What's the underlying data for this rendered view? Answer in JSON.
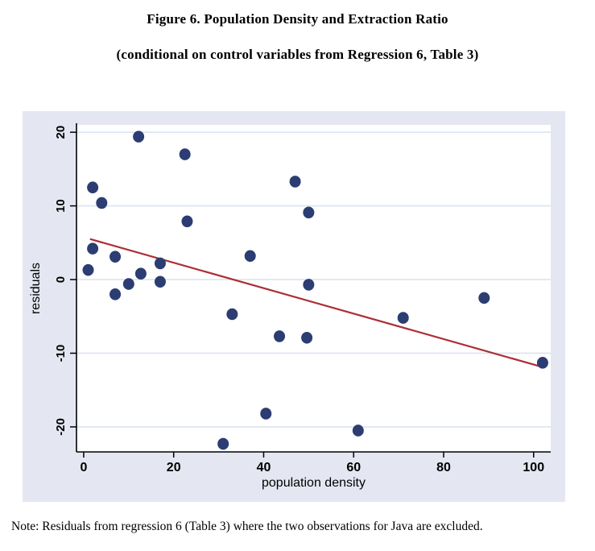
{
  "figure": {
    "title": "Figure 6. Population Density and Extraction Ratio",
    "subtitle": "(conditional on control variables from Regression 6, Table 3)",
    "note": "Note: Residuals from regression 6 (Table 3) where the two observations for Java are excluded."
  },
  "chart_data": {
    "type": "scatter",
    "title": "Figure 6. Population Density and Extraction Ratio",
    "subtitle": "(conditional on control variables from Regression 6, Table 3)",
    "xlabel": "population density",
    "ylabel": "residuals",
    "xlim": [
      -1.6,
      103.8
    ],
    "ylim": [
      -23.4,
      21.0
    ],
    "x_ticks": [
      0,
      20,
      40,
      60,
      80,
      100
    ],
    "y_ticks": [
      -20,
      -10,
      0,
      10,
      20
    ],
    "grid": "horizontal-only",
    "legend": "none",
    "points": [
      [
        1,
        1.3
      ],
      [
        2,
        4.2
      ],
      [
        2,
        12.5
      ],
      [
        4,
        10.4
      ],
      [
        7,
        3.1
      ],
      [
        7,
        -2
      ],
      [
        10,
        -0.6
      ],
      [
        12.2,
        19.4
      ],
      [
        12.7,
        0.8
      ],
      [
        17,
        2.2
      ],
      [
        17,
        -0.3
      ],
      [
        22.5,
        17
      ],
      [
        23,
        7.9
      ],
      [
        31,
        -22.3
      ],
      [
        33,
        -4.7
      ],
      [
        37,
        3.2
      ],
      [
        40.5,
        -18.2
      ],
      [
        43.5,
        -7.7
      ],
      [
        47,
        13.3
      ],
      [
        50,
        9.1
      ],
      [
        50,
        -0.7
      ],
      [
        49.6,
        -7.9
      ],
      [
        61,
        -20.5
      ],
      [
        71,
        -5.2
      ],
      [
        89,
        -2.5
      ],
      [
        102,
        -11.3
      ]
    ],
    "trend_line": {
      "x1": 1.4,
      "y1": 5.5,
      "x2": 102.1,
      "y2": -11.9
    },
    "colors": {
      "dot": "#2b3d72",
      "trend": "#ac2f36",
      "region_bg": "#e4e7f1",
      "plot_bg": "#ffffff",
      "grid": "#dbe4f0",
      "axis": "#000000"
    }
  }
}
